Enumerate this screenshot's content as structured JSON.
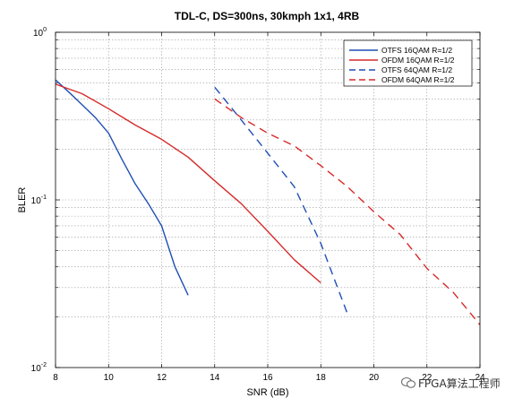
{
  "chart_data": {
    "type": "line",
    "title": "TDL-C, DS=300ns, 30kmph 1x1, 4RB",
    "xlabel": "SNR (dB)",
    "ylabel": "BLER",
    "xlim": [
      8,
      24
    ],
    "ylim": [
      0.01,
      1
    ],
    "yscale": "log",
    "grid": true,
    "legend_position": "top-right",
    "xticks": [
      "8",
      "10",
      "12",
      "14",
      "16",
      "18",
      "20",
      "22",
      "24"
    ],
    "yticks": [
      {
        "base": "10",
        "exp": "0"
      },
      {
        "base": "10",
        "exp": "-1"
      },
      {
        "base": "10",
        "exp": "-2"
      }
    ],
    "series": [
      {
        "name": "OTFS 16QAM R=1/2",
        "color": "#1f4fb4",
        "dash": "solid",
        "x": [
          8,
          8.5,
          9,
          9.5,
          10,
          10.5,
          11,
          11.5,
          12,
          12.5,
          13
        ],
        "y": [
          0.52,
          0.44,
          0.37,
          0.31,
          0.25,
          0.175,
          0.125,
          0.095,
          0.07,
          0.04,
          0.027
        ]
      },
      {
        "name": "OFDM 16QAM R=1/2",
        "color": "#d62a2a",
        "dash": "solid",
        "x": [
          8,
          9,
          10,
          11,
          12,
          13,
          14,
          15,
          16,
          17,
          18
        ],
        "y": [
          0.49,
          0.43,
          0.35,
          0.28,
          0.23,
          0.18,
          0.13,
          0.095,
          0.065,
          0.044,
          0.032
        ]
      },
      {
        "name": "OTFS 64QAM R=1/2",
        "color": "#1f4fb4",
        "dash": "dashed",
        "x": [
          14,
          15,
          16,
          17,
          18,
          19
        ],
        "y": [
          0.47,
          0.3,
          0.19,
          0.12,
          0.055,
          0.021
        ]
      },
      {
        "name": "OFDM 64QAM R=1/2",
        "color": "#d62a2a",
        "dash": "dashed",
        "x": [
          14,
          15,
          16,
          17,
          18,
          19,
          20,
          21,
          22,
          23,
          24
        ],
        "y": [
          0.4,
          0.31,
          0.25,
          0.21,
          0.16,
          0.12,
          0.085,
          0.062,
          0.039,
          0.028,
          0.018
        ]
      }
    ]
  },
  "watermark": {
    "text": "FPGA算法工程师"
  }
}
